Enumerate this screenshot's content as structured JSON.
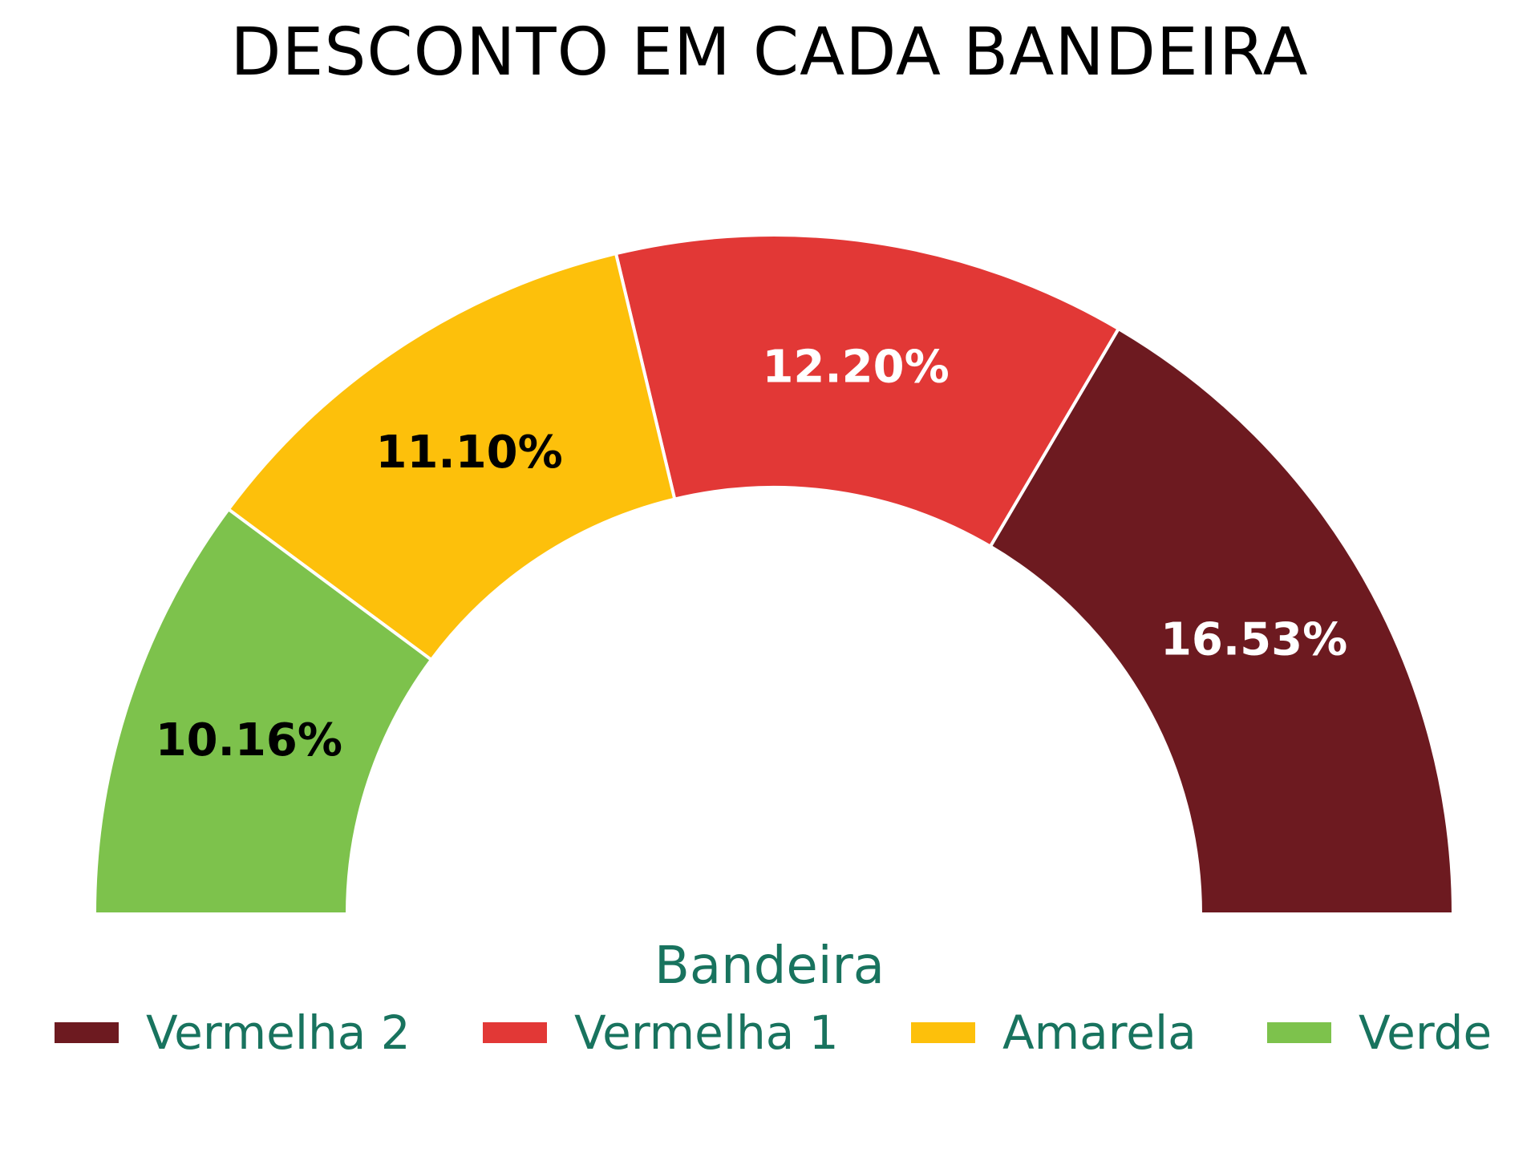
{
  "chart_data": {
    "type": "pie",
    "variant": "half-donut",
    "title": "DESCONTO EM CADA BANDEIRA",
    "legend": {
      "title": "Bandeira",
      "placement": "bottom",
      "text_color": "#18735e"
    },
    "categories": [
      "Vermelha 2",
      "Vermelha 1",
      "Amarela",
      "Verde"
    ],
    "values": [
      16.53,
      12.2,
      11.1,
      10.16
    ],
    "labels": [
      "16.53%",
      "12.20%",
      "11.10%",
      "10.16%"
    ],
    "colors": [
      "#6d1a20",
      "#e23836",
      "#fdc00b",
      "#7dc24c"
    ],
    "label_colors": [
      "#ffffff",
      "#ffffff",
      "#000000",
      "#000000"
    ]
  }
}
